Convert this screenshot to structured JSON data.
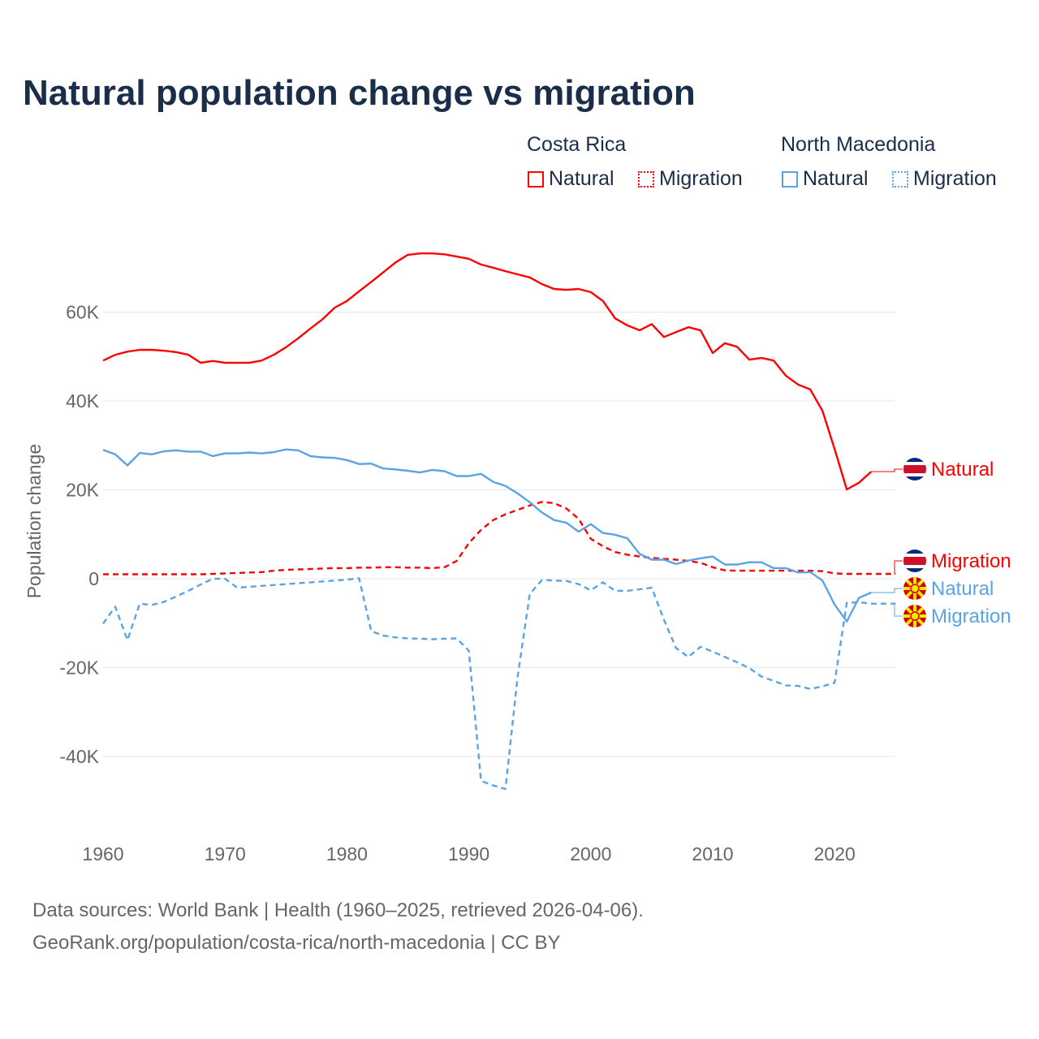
{
  "title": "Natural population change vs migration",
  "legend": {
    "groups": [
      {
        "name": "Costa Rica",
        "color": "#ff0000",
        "items": [
          "Natural",
          "Migration"
        ]
      },
      {
        "name": "North Macedonia",
        "color": "#5ba3e6",
        "items": [
          "Natural",
          "Migration"
        ]
      }
    ]
  },
  "chart_data": {
    "type": "line",
    "title": "Natural population change vs migration",
    "xlabel": "",
    "ylabel": "Population change",
    "xlim": [
      1960,
      2025
    ],
    "ylim": [
      -50000,
      75000
    ],
    "xticks": [
      1960,
      1970,
      1980,
      1990,
      2000,
      2010,
      2020
    ],
    "xtick_labels": [
      "1960",
      "1970",
      "1980",
      "1990",
      "2000",
      "2010",
      "2020"
    ],
    "yticks": [
      -40000,
      -20000,
      0,
      20000,
      40000,
      60000
    ],
    "ytick_labels": [
      "-40K",
      "-20K",
      "0",
      "20K",
      "40K",
      "60K"
    ],
    "grid": true,
    "legend_position": "top-right",
    "series": [
      {
        "name": "Costa Rica Natural",
        "label": "Natural",
        "country": "Costa Rica",
        "color": "#ff0000",
        "dash": "solid",
        "start_year": 1960,
        "values": [
          49100,
          50400,
          51100,
          51500,
          51500,
          51300,
          51000,
          50400,
          48600,
          49000,
          48600,
          48600,
          48600,
          49100,
          50400,
          52100,
          54100,
          56300,
          58400,
          61000,
          62500,
          64700,
          66800,
          69000,
          71200,
          72900,
          73200,
          73200,
          73000,
          72500,
          72000,
          70700,
          70000,
          69200,
          68500,
          67800,
          66300,
          65200,
          65000,
          65200,
          64500,
          62500,
          58600,
          57000,
          55900,
          57300,
          54400,
          55500,
          56600,
          55900,
          50800,
          53000,
          52200,
          49300,
          49700,
          49100,
          45700,
          43700,
          42600,
          37800,
          29200,
          20100,
          21600,
          24100
        ]
      },
      {
        "name": "Costa Rica Migration",
        "label": "Migration",
        "country": "Costa Rica",
        "color": "#ff0000",
        "dash": "dashed",
        "start_year": 1960,
        "values": [
          1000,
          1000,
          1000,
          1000,
          1000,
          1000,
          1000,
          1000,
          1000,
          1100,
          1200,
          1300,
          1400,
          1500,
          1800,
          2000,
          2100,
          2200,
          2300,
          2400,
          2400,
          2500,
          2500,
          2600,
          2600,
          2500,
          2500,
          2400,
          2600,
          4000,
          8000,
          11000,
          13200,
          14500,
          15500,
          16500,
          17300,
          17000,
          15800,
          13500,
          9000,
          7300,
          6000,
          5400,
          5000,
          4700,
          4500,
          4300,
          4000,
          3600,
          2600,
          1900,
          1800,
          1800,
          1800,
          1800,
          1800,
          1800,
          1800,
          1700,
          1200,
          1100,
          1100,
          1100,
          1100,
          1100
        ]
      },
      {
        "name": "North Macedonia Natural",
        "label": "Natural",
        "country": "North Macedonia",
        "color": "#5ba3e6",
        "dash": "solid",
        "start_year": 1960,
        "values": [
          29000,
          28000,
          25500,
          28300,
          28000,
          28700,
          28900,
          28600,
          28600,
          27600,
          28200,
          28200,
          28400,
          28200,
          28500,
          29100,
          28900,
          27600,
          27300,
          27200,
          26700,
          25800,
          25900,
          24800,
          24600,
          24300,
          23900,
          24500,
          24200,
          23100,
          23100,
          23600,
          21800,
          20900,
          19200,
          17200,
          14900,
          13200,
          12600,
          10600,
          12300,
          10300,
          9900,
          9100,
          5600,
          4300,
          4300,
          3300,
          4100,
          4600,
          5000,
          3200,
          3200,
          3700,
          3700,
          2400,
          2400,
          1400,
          1500,
          -400,
          -5800,
          -9600,
          -4300,
          -3100
        ]
      },
      {
        "name": "North Macedonia Migration",
        "label": "Migration",
        "country": "North Macedonia",
        "color": "#5ba3e6",
        "dash": "dashed",
        "start_year": 1960,
        "values": [
          -10100,
          -6300,
          -13800,
          -5600,
          -5900,
          -5200,
          -4000,
          -2700,
          -1300,
          0,
          0,
          -2000,
          -1800,
          -1600,
          -1400,
          -1200,
          -1000,
          -800,
          -600,
          -400,
          -200,
          100,
          -11800,
          -12800,
          -13200,
          -13400,
          -13500,
          -13600,
          -13500,
          -13400,
          -16200,
          -45500,
          -46500,
          -47300,
          -22000,
          -3400,
          -300,
          -400,
          -500,
          -1200,
          -2600,
          -800,
          -2700,
          -2700,
          -2400,
          -2000,
          -9200,
          -15600,
          -17600,
          -15300,
          -16400,
          -17600,
          -18800,
          -20100,
          -22000,
          -23000,
          -24000,
          -24100,
          -24800,
          -24200,
          -23400,
          -5400,
          -5300,
          -5600,
          -5600,
          -5600
        ]
      }
    ]
  },
  "footer": {
    "line1": "Data sources: World Bank | Health (1960–2025, retrieved 2026-04-06).",
    "line2": "GeoRank.org/population/costa-rica/north-macedonia | CC BY"
  }
}
